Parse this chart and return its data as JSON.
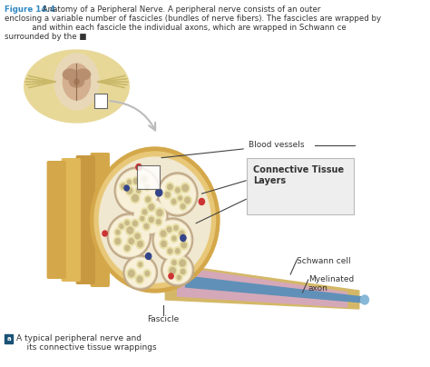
{
  "bg_color": "#ffffff",
  "fig_label_color": "#2e86c1",
  "text_color": "#333333",
  "title_bold": "Figure 14.4",
  "title_rest": " Anatomy of a Peripheral Nerve. A peripheral nerve consists of an outer",
  "line2": "enclosing a variable number of fascicles (bundles of nerve fibers). The fascicles are wrapped bу",
  "line3": "           and within each fascicle the individual axons, which are wrapped in Schwann ce",
  "line4": "surrounded by the ■",
  "caption_icon_color": "#1a5276",
  "caption_text": "A typical peripheral nerve and\n    its connective tissue wrappings",
  "label_blood_vessels": "Blood vessels",
  "label_connective": "Connective Tissue\nLayers",
  "label_schwann": "Schwann cell",
  "label_myelinated": "Myelinated\naxon",
  "label_fascicle": "Fascicle",
  "epineurium_outer": "#d4a84a",
  "epineurium_mid": "#e8c878",
  "epineurium_inner_bg": "#f0dfa0",
  "perineurium_color": "#c8b8a0",
  "fascicle_bg": "#f5eed0",
  "axon_myelin": "#e8e0a0",
  "axon_core": "#c8b090",
  "dot_red": "#cc3333",
  "dot_blue": "#334488",
  "connective_box_color": "#eeeeee",
  "connective_box_edge": "#bbbbbb",
  "line_color": "#555555",
  "spine_bone": "#e8d898",
  "spine_cord": "#c8b888",
  "spine_gray": "#d4b090",
  "arrow_color": "#bbbbbb",
  "fascicle_ext_pink": "#d4a0b8",
  "fascicle_ext_tan": "#d4c090",
  "myelinated_axon_blue": "#6090b8"
}
